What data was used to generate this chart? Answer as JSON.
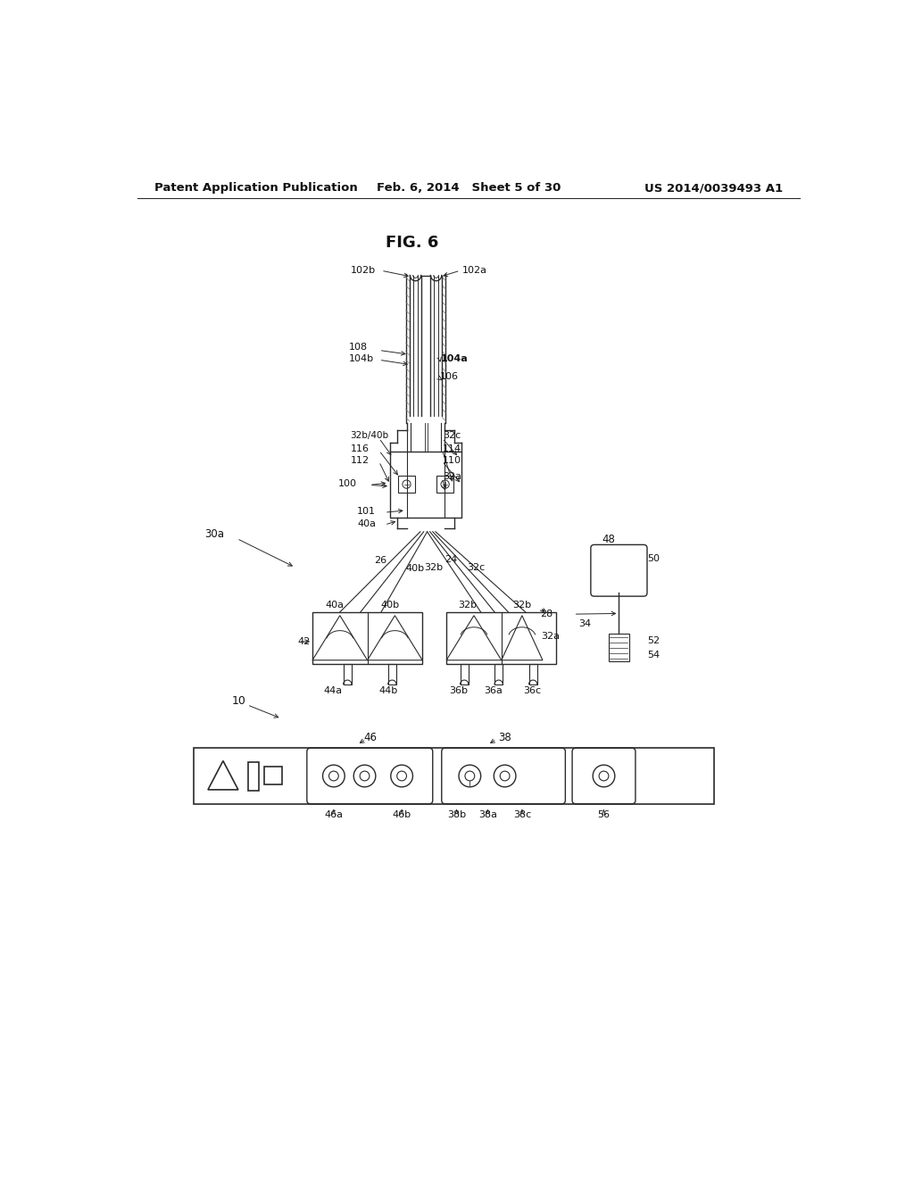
{
  "title": "FIG. 6",
  "header_left": "Patent Application Publication",
  "header_center": "Feb. 6, 2014   Sheet 5 of 30",
  "header_right": "US 2014/0039493 A1",
  "bg_color": "#ffffff",
  "lc": "#2a2a2a",
  "mg": "#777777",
  "lg": "#aaaaaa"
}
